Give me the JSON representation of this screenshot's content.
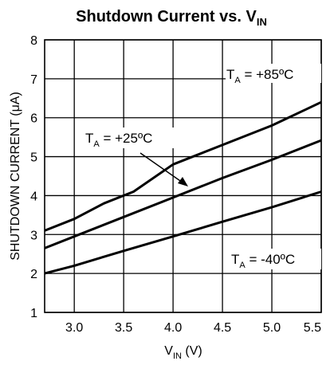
{
  "chart_data": {
    "type": "line",
    "title": {
      "text": "Shutdown Current vs. V",
      "sub": "IN"
    },
    "xlabel": {
      "main": "V",
      "sub": "IN",
      "suffix": " (V)"
    },
    "ylabel": "SHUTDOWN CURRENT (μA)",
    "xlim": [
      2.7,
      5.5
    ],
    "ylim": [
      1,
      8
    ],
    "xticks": [
      3.0,
      3.5,
      4.0,
      4.5,
      5.0,
      5.5
    ],
    "xtick_labels": [
      "3.0",
      "3.5",
      "4.0",
      "4.5",
      "5.0",
      "5.5"
    ],
    "yticks": [
      1,
      2,
      3,
      4,
      5,
      6,
      7,
      8
    ],
    "ytick_labels": [
      "1",
      "2",
      "3",
      "4",
      "5",
      "6",
      "7",
      "8"
    ],
    "grid": true,
    "series": [
      {
        "name": "TA = +85ºC",
        "x": [
          2.7,
          3.0,
          3.3,
          3.6,
          4.0,
          4.5,
          5.0,
          5.5
        ],
        "y": [
          3.1,
          3.4,
          3.8,
          4.1,
          4.8,
          5.3,
          5.8,
          6.4
        ]
      },
      {
        "name": "TA = +25ºC",
        "x": [
          2.7,
          3.0,
          3.5,
          4.0,
          4.5,
          5.0,
          5.5
        ],
        "y": [
          2.65,
          2.95,
          3.45,
          3.95,
          4.45,
          4.92,
          5.42
        ]
      },
      {
        "name": "TA = -40ºC",
        "x": [
          2.7,
          3.0,
          3.5,
          4.0,
          4.5,
          5.0,
          5.5
        ],
        "y": [
          2.0,
          2.2,
          2.58,
          2.95,
          3.33,
          3.7,
          4.1
        ]
      }
    ],
    "annotations": [
      {
        "main": "T",
        "sub": "A",
        "rest": " = +85ºC"
      },
      {
        "main": "T",
        "sub": "A",
        "rest": " = +25ºC"
      },
      {
        "main": "T",
        "sub": "A",
        "rest": " = -40ºC"
      }
    ]
  }
}
